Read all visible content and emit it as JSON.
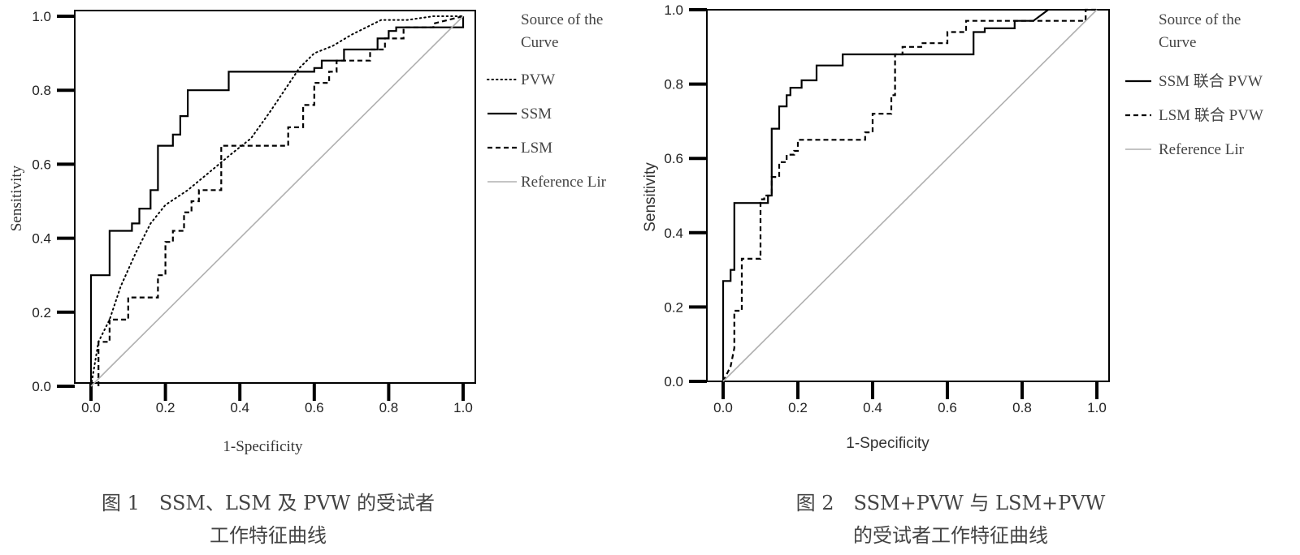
{
  "colors": {
    "axis": "#000000",
    "curve": "#000000",
    "reference": "#b0b0b0",
    "text": "#222222",
    "caption": "#444444"
  },
  "chart_data": [
    {
      "type": "line",
      "caption_line1": "图 1　SSM、LSM 及 PVW 的受试者",
      "caption_line2": "工作特征曲线",
      "xlabel": "1-Specificity",
      "ylabel": "Sensitivity",
      "xlim": [
        0,
        1
      ],
      "ylim": [
        0,
        1
      ],
      "x_ticks": [
        "0.0",
        "0.2",
        "0.4",
        "0.6",
        "0.8",
        "1.0"
      ],
      "y_ticks": [
        "0.0",
        "0.2",
        "0.4",
        "0.6",
        "0.8",
        "1.0"
      ],
      "grid": false,
      "legend_title": "Source of the Curve",
      "legend_position": "right",
      "series": [
        {
          "name": "PVW",
          "style": "dotted",
          "x": [
            0,
            0.02,
            0.05,
            0.08,
            0.12,
            0.16,
            0.2,
            0.26,
            0.32,
            0.38,
            0.43,
            0.48,
            0.52,
            0.56,
            0.6,
            0.65,
            0.7,
            0.74,
            0.78,
            0.85,
            0.92,
            0.97,
            1.0
          ],
          "y": [
            0,
            0.12,
            0.18,
            0.27,
            0.36,
            0.44,
            0.49,
            0.53,
            0.58,
            0.63,
            0.67,
            0.74,
            0.8,
            0.86,
            0.9,
            0.92,
            0.95,
            0.97,
            0.99,
            0.99,
            1.0,
            1.0,
            1.0
          ]
        },
        {
          "name": "SSM",
          "style": "solid",
          "x": [
            0,
            0,
            0.05,
            0.05,
            0.11,
            0.11,
            0.13,
            0.13,
            0.16,
            0.16,
            0.18,
            0.18,
            0.22,
            0.22,
            0.24,
            0.24,
            0.26,
            0.26,
            0.37,
            0.37,
            0.6,
            0.6,
            0.62,
            0.62,
            0.68,
            0.68,
            0.77,
            0.77,
            0.8,
            0.8,
            0.82,
            0.82,
            1.0,
            1.0
          ],
          "y": [
            0,
            0.3,
            0.3,
            0.42,
            0.42,
            0.44,
            0.44,
            0.48,
            0.48,
            0.53,
            0.53,
            0.65,
            0.65,
            0.68,
            0.68,
            0.73,
            0.73,
            0.8,
            0.8,
            0.85,
            0.85,
            0.86,
            0.86,
            0.88,
            0.88,
            0.91,
            0.91,
            0.94,
            0.94,
            0.96,
            0.96,
            0.97,
            0.97,
            1.0
          ]
        },
        {
          "name": "LSM",
          "style": "dashed",
          "x": [
            0.02,
            0.02,
            0.05,
            0.05,
            0.1,
            0.1,
            0.18,
            0.18,
            0.2,
            0.2,
            0.22,
            0.22,
            0.25,
            0.25,
            0.27,
            0.27,
            0.29,
            0.29,
            0.35,
            0.35,
            0.37,
            0.37,
            0.53,
            0.53,
            0.57,
            0.57,
            0.6,
            0.6,
            0.64,
            0.64,
            0.66,
            0.66,
            0.75,
            0.75,
            0.79,
            0.79,
            0.84,
            0.84,
            0.92,
            0.92,
            1.0
          ],
          "y": [
            0,
            0.12,
            0.12,
            0.18,
            0.18,
            0.24,
            0.24,
            0.3,
            0.3,
            0.39,
            0.39,
            0.42,
            0.42,
            0.47,
            0.47,
            0.5,
            0.5,
            0.53,
            0.53,
            0.65,
            0.65,
            0.65,
            0.65,
            0.7,
            0.7,
            0.76,
            0.76,
            0.82,
            0.82,
            0.85,
            0.85,
            0.88,
            0.88,
            0.91,
            0.91,
            0.94,
            0.94,
            0.97,
            0.97,
            0.98,
            1.0
          ]
        },
        {
          "name": "Reference Lir",
          "style": "reference",
          "x": [
            0,
            1
          ],
          "y": [
            0,
            1
          ]
        }
      ]
    },
    {
      "type": "line",
      "caption_line1": "图 2　SSM+PVW 与 LSM+PVW",
      "caption_line2": "的受试者工作特征曲线",
      "xlabel": "1-Specificity",
      "ylabel": "Sensitivity",
      "xlim": [
        0,
        1
      ],
      "ylim": [
        0,
        1
      ],
      "x_ticks": [
        "0.0",
        "0.2",
        "0.4",
        "0.6",
        "0.8",
        "1.0"
      ],
      "y_ticks": [
        "0.0",
        "0.2",
        "0.4",
        "0.6",
        "0.8",
        "1.0"
      ],
      "grid": false,
      "legend_title": "Source of the Curve",
      "legend_position": "right",
      "series": [
        {
          "name": "SSM 联合 PVW",
          "style": "solid",
          "x": [
            0,
            0,
            0.02,
            0.02,
            0.03,
            0.03,
            0.12,
            0.12,
            0.13,
            0.13,
            0.15,
            0.15,
            0.17,
            0.17,
            0.18,
            0.18,
            0.21,
            0.21,
            0.25,
            0.25,
            0.32,
            0.32,
            0.67,
            0.67,
            0.7,
            0.7,
            0.78,
            0.78,
            0.83,
            0.87
          ],
          "y": [
            0,
            0.27,
            0.27,
            0.3,
            0.3,
            0.48,
            0.48,
            0.5,
            0.5,
            0.68,
            0.68,
            0.74,
            0.74,
            0.77,
            0.77,
            0.79,
            0.79,
            0.81,
            0.81,
            0.85,
            0.85,
            0.88,
            0.88,
            0.94,
            0.94,
            0.95,
            0.95,
            0.97,
            0.97,
            1.0
          ]
        },
        {
          "name": "LSM 联合 PVW",
          "style": "dashed",
          "x": [
            0,
            0.02,
            0.03,
            0.03,
            0.05,
            0.05,
            0.1,
            0.1,
            0.11,
            0.11,
            0.13,
            0.13,
            0.15,
            0.15,
            0.17,
            0.17,
            0.19,
            0.19,
            0.2,
            0.2,
            0.38,
            0.38,
            0.4,
            0.4,
            0.45,
            0.45,
            0.46,
            0.46,
            0.48,
            0.48,
            0.53,
            0.53,
            0.6,
            0.6,
            0.65,
            0.65,
            0.75,
            0.75,
            0.97,
            0.97,
            1.0
          ],
          "y": [
            0,
            0.04,
            0.09,
            0.19,
            0.19,
            0.33,
            0.33,
            0.49,
            0.49,
            0.5,
            0.5,
            0.55,
            0.55,
            0.59,
            0.59,
            0.61,
            0.61,
            0.62,
            0.62,
            0.65,
            0.65,
            0.67,
            0.67,
            0.72,
            0.72,
            0.77,
            0.77,
            0.88,
            0.88,
            0.9,
            0.9,
            0.91,
            0.91,
            0.94,
            0.94,
            0.97,
            0.97,
            0.97,
            0.97,
            1.0,
            1.0
          ]
        },
        {
          "name": "Reference Lir",
          "style": "reference",
          "x": [
            0,
            1
          ],
          "y": [
            0,
            1
          ]
        }
      ]
    }
  ]
}
